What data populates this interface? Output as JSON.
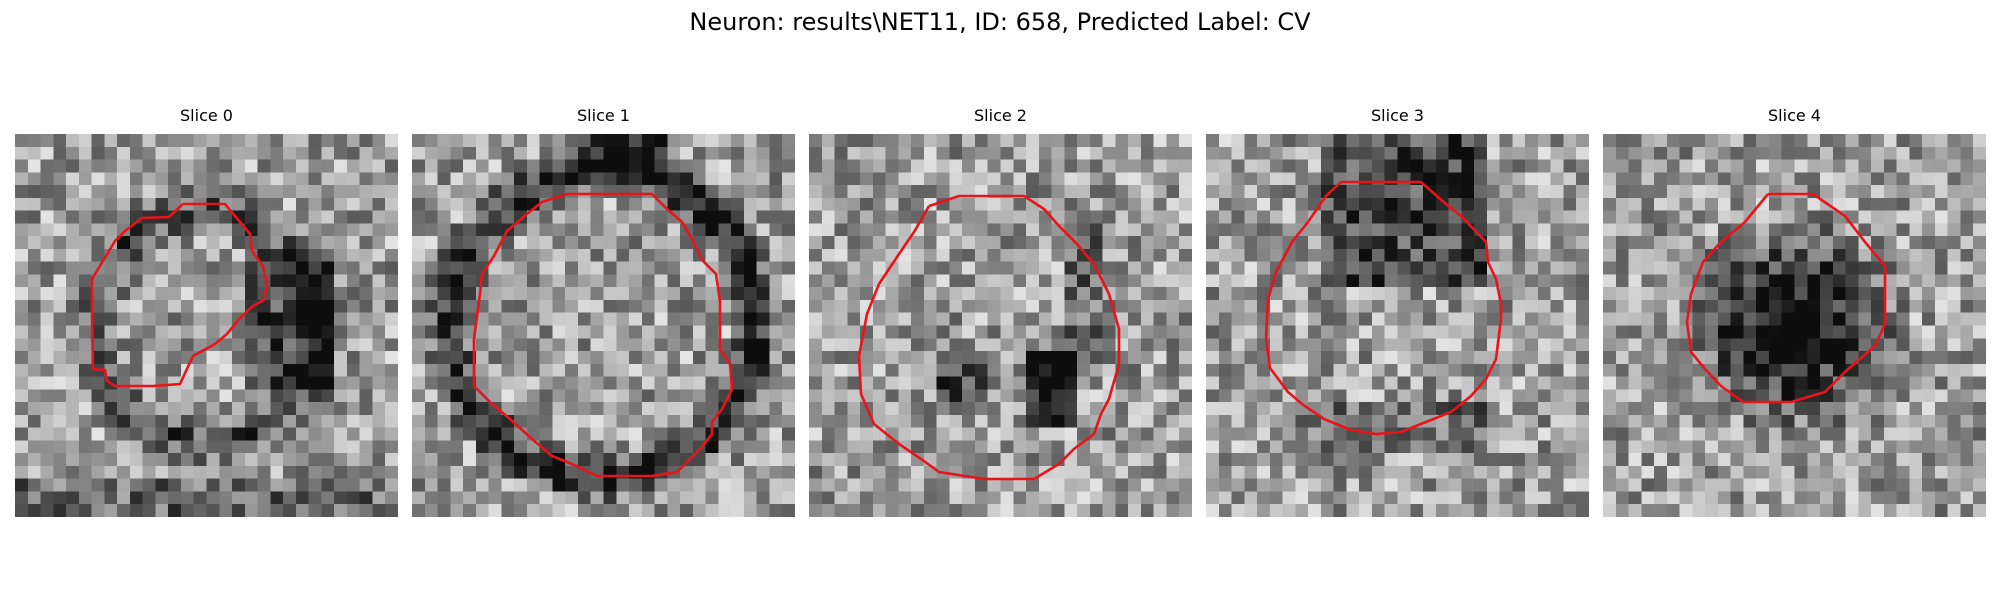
{
  "figure": {
    "title": "Neuron: results\\NET11, ID: 658, Predicted Label: CV"
  },
  "contour_color": "#e8141a",
  "slices": [
    {
      "title": "Slice 0",
      "seed": 11,
      "dark_region": "ring-right",
      "contour": "slice0-contour"
    },
    {
      "title": "Slice 1",
      "seed": 23,
      "dark_region": "ring",
      "contour": "slice1-contour"
    },
    {
      "title": "Slice 2",
      "seed": 37,
      "dark_region": "bottom-blobs",
      "contour": "slice2-contour"
    },
    {
      "title": "Slice 3",
      "seed": 41,
      "dark_region": "top-speckle",
      "contour": "slice3-contour"
    },
    {
      "title": "Slice 4",
      "seed": 53,
      "dark_region": "center",
      "contour": "slice4-contour"
    }
  ]
}
